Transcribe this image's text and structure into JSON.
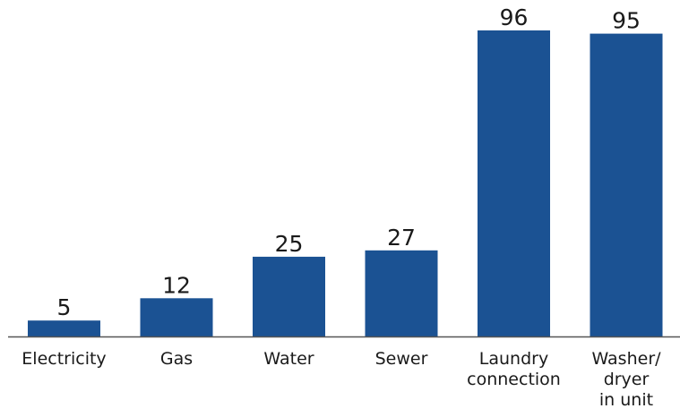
{
  "chart_data": {
    "type": "bar",
    "categories": [
      [
        "Electricity"
      ],
      [
        "Gas"
      ],
      [
        "Water"
      ],
      [
        "Sewer"
      ],
      [
        "Laundry",
        "connection"
      ],
      [
        "Washer/",
        "dryer",
        "in unit"
      ]
    ],
    "values": [
      5,
      12,
      25,
      27,
      96,
      95
    ],
    "data_labels": [
      "5",
      "12",
      "25",
      "27",
      "96",
      "95"
    ],
    "title": "",
    "xlabel": "",
    "ylabel": "",
    "ylim": [
      0,
      96
    ],
    "grid": false,
    "legend": "none",
    "bar_color": "#1b5293",
    "axis_color": "#555555"
  }
}
